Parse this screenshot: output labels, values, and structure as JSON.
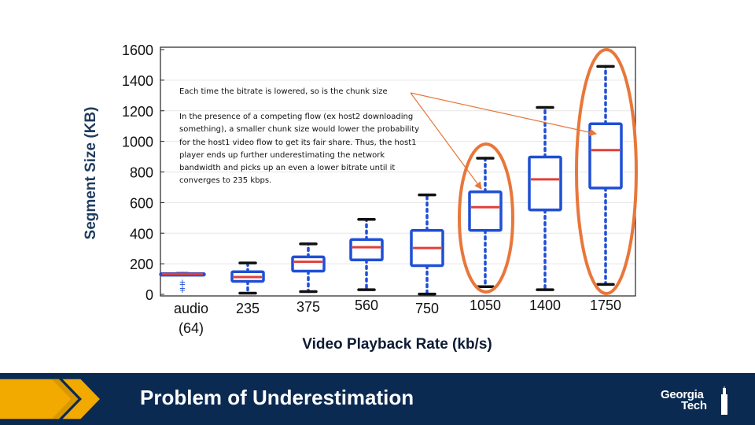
{
  "chart_data": {
    "type": "box",
    "ylabel": "Segment Size (KB)",
    "xlabel": "Video Playback Rate (kb/s)",
    "ylim": [
      0,
      1600
    ],
    "yticks": [
      0,
      200,
      400,
      600,
      800,
      1000,
      1200,
      1400,
      1600
    ],
    "grid": true,
    "categories": [
      {
        "lines": [
          "audio",
          "(64)"
        ]
      },
      {
        "lines": [
          "235"
        ]
      },
      {
        "lines": [
          "375"
        ]
      },
      {
        "lines": [
          "560"
        ]
      },
      {
        "lines": [
          "750"
        ]
      },
      {
        "lines": [
          "1050"
        ]
      },
      {
        "lines": [
          "1400"
        ]
      },
      {
        "lines": [
          "1750"
        ]
      }
    ],
    "boxes": [
      {
        "q1": 130,
        "median": 133,
        "q3": 136,
        "whisker_low": 128,
        "whisker_high": 137,
        "outliers": [
          30,
          45,
          70,
          85
        ]
      },
      {
        "q1": 85,
        "median": 113,
        "q3": 148,
        "whisker_low": 8,
        "whisker_high": 205,
        "outliers": []
      },
      {
        "q1": 152,
        "median": 213,
        "q3": 245,
        "whisker_low": 18,
        "whisker_high": 330,
        "outliers": []
      },
      {
        "q1": 225,
        "median": 308,
        "q3": 358,
        "whisker_low": 30,
        "whisker_high": 490,
        "outliers": []
      },
      {
        "q1": 188,
        "median": 303,
        "q3": 418,
        "whisker_low": 2,
        "whisker_high": 650,
        "outliers": []
      },
      {
        "q1": 418,
        "median": 570,
        "q3": 670,
        "whisker_low": 50,
        "whisker_high": 890,
        "outliers": []
      },
      {
        "q1": 552,
        "median": 752,
        "q3": 898,
        "whisker_low": 30,
        "whisker_high": 1222,
        "outliers": []
      },
      {
        "q1": 695,
        "median": 943,
        "q3": 1115,
        "whisker_low": 65,
        "whisker_high": 1490,
        "outliers": []
      }
    ],
    "highlighted_categories": [
      5,
      7
    ],
    "colors": {
      "box": "#1f4fd6",
      "median": "#e0403a",
      "whisker_cap": "#111111",
      "highlight": "#e8773a",
      "grid": "#e6e6e6",
      "axis_label": "#1f3b5c"
    },
    "annotation": {
      "line1": "Each time the bitrate is lowered, so is the chunk size",
      "paragraph": "In the presence of a competing flow (ex host2 downloading something), a smaller chunk size would lower the probability for the host1 video flow to get its fair share. Thus, the host1 player ends up further underestimating the network bandwidth and picks up an even a lower bitrate until it converges to 235 kbps."
    }
  },
  "footer": {
    "title": "Problem of Underestimation",
    "logo_line1": "Georgia",
    "logo_line2": "Tech",
    "colors": {
      "background": "#0b2a52",
      "chevron": "#f2a900",
      "chevron_dark": "#c68a00"
    }
  }
}
